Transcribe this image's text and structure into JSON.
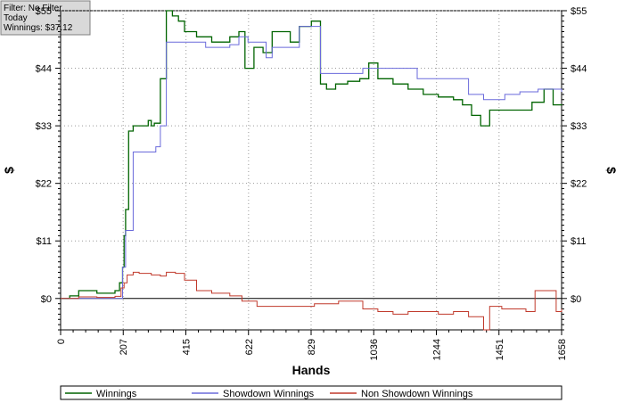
{
  "info_box": {
    "filter": "Filter: No Filter",
    "period": "Today",
    "winnings": "Winnings: $37.12"
  },
  "chart_data": {
    "type": "line",
    "xlabel": "Hands",
    "ylabel": "$",
    "xlim": [
      0,
      1658
    ],
    "ylim": [
      -6,
      55
    ],
    "x_ticks": [
      0,
      207,
      415,
      622,
      829,
      1036,
      1244,
      1451,
      1658
    ],
    "y_ticks": [
      0,
      11,
      22,
      33,
      44,
      55
    ],
    "y_tick_labels": [
      "$0",
      "$11",
      "$22",
      "$33",
      "$44",
      "$55"
    ],
    "grid": true,
    "legend_position": "bottom",
    "series": [
      {
        "name": "Winnings",
        "color": "#006400",
        "points": [
          [
            0,
            0
          ],
          [
            30,
            0.5
          ],
          [
            60,
            1.5
          ],
          [
            120,
            1
          ],
          [
            180,
            1.5
          ],
          [
            195,
            3
          ],
          [
            205,
            6
          ],
          [
            210,
            12
          ],
          [
            215,
            17
          ],
          [
            225,
            32
          ],
          [
            240,
            33
          ],
          [
            270,
            33
          ],
          [
            290,
            34
          ],
          [
            300,
            33
          ],
          [
            310,
            33.5
          ],
          [
            330,
            42
          ],
          [
            350,
            55
          ],
          [
            370,
            54
          ],
          [
            390,
            53
          ],
          [
            410,
            51
          ],
          [
            450,
            50
          ],
          [
            500,
            49
          ],
          [
            560,
            50
          ],
          [
            590,
            51
          ],
          [
            610,
            44
          ],
          [
            640,
            48
          ],
          [
            670,
            47
          ],
          [
            700,
            51
          ],
          [
            730,
            51
          ],
          [
            760,
            49
          ],
          [
            790,
            52
          ],
          [
            830,
            53
          ],
          [
            860,
            41
          ],
          [
            880,
            40
          ],
          [
            910,
            41
          ],
          [
            950,
            41.5
          ],
          [
            990,
            42
          ],
          [
            1020,
            45
          ],
          [
            1050,
            42
          ],
          [
            1100,
            41
          ],
          [
            1150,
            40
          ],
          [
            1200,
            39
          ],
          [
            1250,
            38.5
          ],
          [
            1300,
            38
          ],
          [
            1330,
            37
          ],
          [
            1360,
            35
          ],
          [
            1390,
            33
          ],
          [
            1420,
            36
          ],
          [
            1460,
            36
          ],
          [
            1520,
            36
          ],
          [
            1560,
            37.5
          ],
          [
            1600,
            40
          ],
          [
            1630,
            37
          ],
          [
            1658,
            37.12
          ]
        ]
      },
      {
        "name": "Showdown Winnings",
        "color": "#6a6adb",
        "points": [
          [
            0,
            0
          ],
          [
            195,
            0
          ],
          [
            205,
            6
          ],
          [
            215,
            13
          ],
          [
            240,
            28
          ],
          [
            270,
            28
          ],
          [
            280,
            28
          ],
          [
            315,
            29
          ],
          [
            330,
            33
          ],
          [
            350,
            49
          ],
          [
            420,
            49
          ],
          [
            480,
            48
          ],
          [
            560,
            48.5
          ],
          [
            590,
            50
          ],
          [
            620,
            49
          ],
          [
            680,
            46
          ],
          [
            700,
            48
          ],
          [
            750,
            48
          ],
          [
            790,
            52
          ],
          [
            830,
            52
          ],
          [
            860,
            43
          ],
          [
            940,
            43
          ],
          [
            980,
            43
          ],
          [
            1000,
            44
          ],
          [
            1050,
            44
          ],
          [
            1100,
            44
          ],
          [
            1150,
            44
          ],
          [
            1180,
            42
          ],
          [
            1300,
            42
          ],
          [
            1350,
            39
          ],
          [
            1400,
            38
          ],
          [
            1440,
            38
          ],
          [
            1470,
            39
          ],
          [
            1500,
            39
          ],
          [
            1520,
            39.5
          ],
          [
            1580,
            40
          ],
          [
            1658,
            39.5
          ]
        ]
      },
      {
        "name": "Non Showdown Winnings",
        "color": "#c0392b",
        "points": [
          [
            0,
            0
          ],
          [
            60,
            0.3
          ],
          [
            120,
            0.2
          ],
          [
            180,
            0.4
          ],
          [
            200,
            2
          ],
          [
            210,
            3
          ],
          [
            220,
            4.5
          ],
          [
            240,
            5
          ],
          [
            260,
            4.8
          ],
          [
            280,
            4.8
          ],
          [
            300,
            4.5
          ],
          [
            330,
            4.3
          ],
          [
            350,
            5
          ],
          [
            380,
            4.8
          ],
          [
            410,
            3.5
          ],
          [
            450,
            1.5
          ],
          [
            500,
            1
          ],
          [
            560,
            0.5
          ],
          [
            600,
            -0.5
          ],
          [
            650,
            -1.5
          ],
          [
            700,
            -1.5
          ],
          [
            760,
            -1.5
          ],
          [
            800,
            -1.5
          ],
          [
            840,
            -1
          ],
          [
            880,
            -1
          ],
          [
            920,
            -0.5
          ],
          [
            960,
            -0.5
          ],
          [
            1000,
            -2
          ],
          [
            1050,
            -2.5
          ],
          [
            1100,
            -3
          ],
          [
            1150,
            -2.5
          ],
          [
            1200,
            -2.5
          ],
          [
            1250,
            -3
          ],
          [
            1300,
            -2.5
          ],
          [
            1350,
            -3.5
          ],
          [
            1380,
            -3.5
          ],
          [
            1400,
            -6
          ],
          [
            1420,
            -1.5
          ],
          [
            1460,
            -2
          ],
          [
            1500,
            -2
          ],
          [
            1540,
            -2.5
          ],
          [
            1570,
            1.5
          ],
          [
            1600,
            1.5
          ],
          [
            1620,
            1.5
          ],
          [
            1640,
            -2.5
          ],
          [
            1658,
            -2
          ]
        ]
      }
    ]
  }
}
